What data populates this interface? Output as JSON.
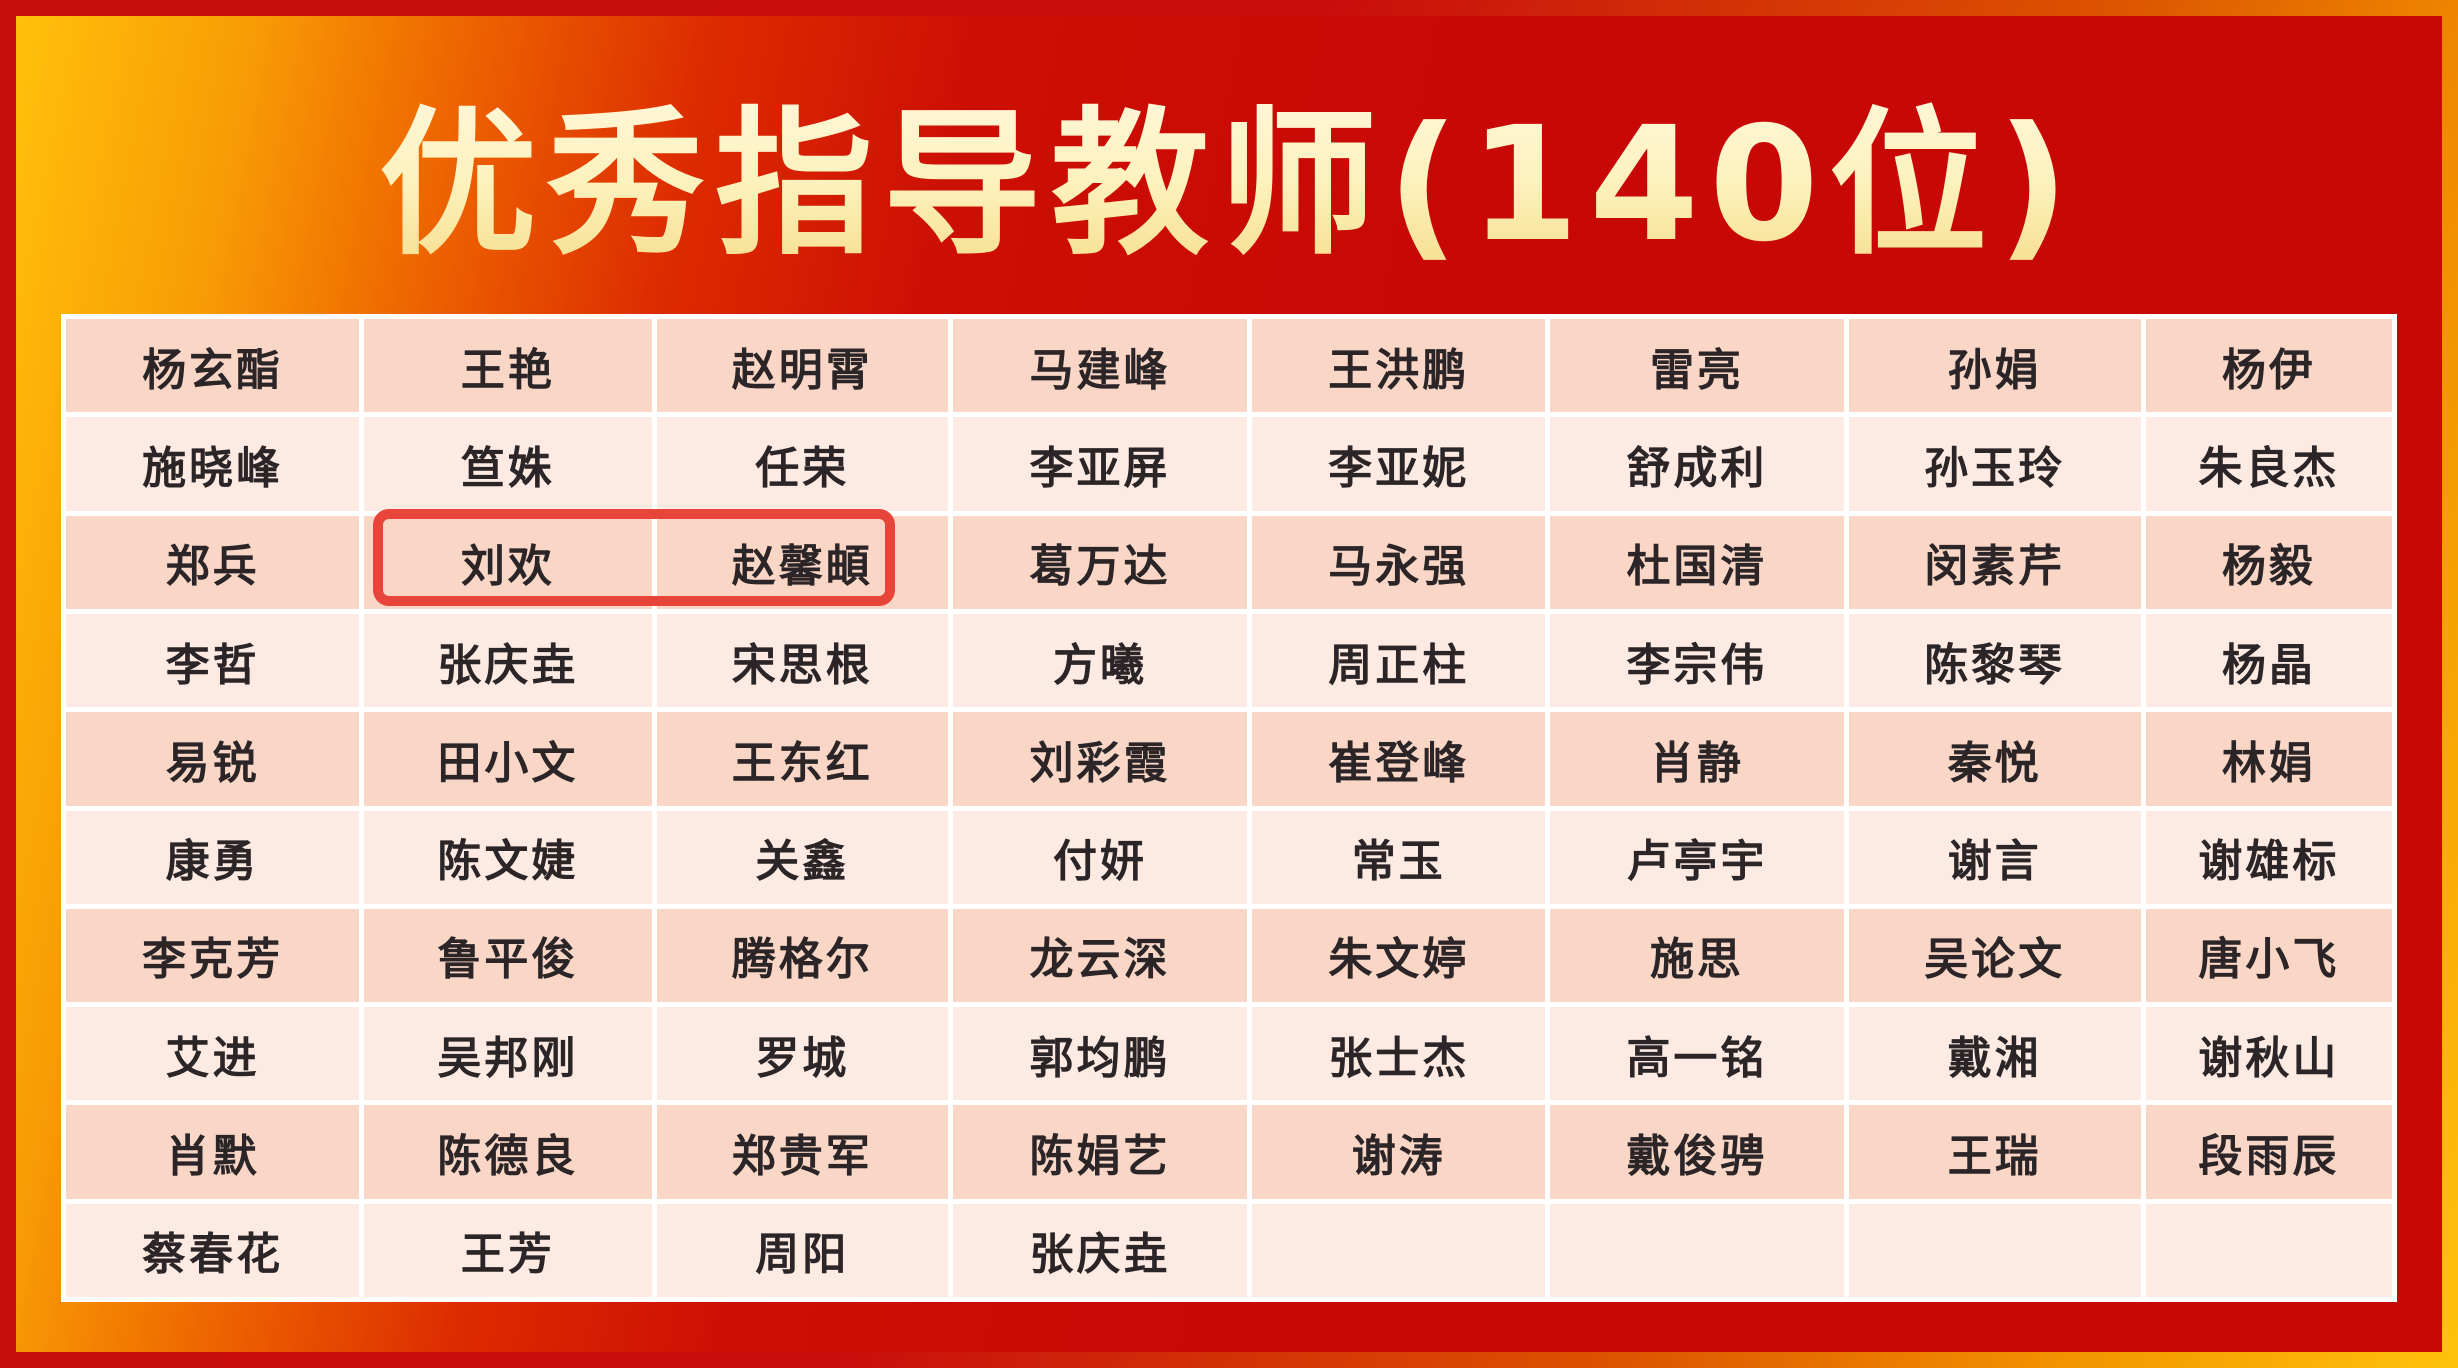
{
  "title": "优秀指导教师(140位)",
  "colors": {
    "frame_red": "#c40d0d",
    "frame_gold": "#ffc30b",
    "panel_gold": "#ffc10a",
    "panel_red": "#c80806",
    "grid_line": "#ffffff",
    "row_dark": "#f9d6c6",
    "row_light": "#fdebe3",
    "name_text": "#2b2527",
    "title_cream": "#fdf1bd",
    "highlight_red": "#e8453a"
  },
  "highlight": {
    "names": [
      "刘欢",
      "赵馨頔"
    ],
    "row_index": 2,
    "col_indices": [
      1,
      2
    ]
  },
  "table": {
    "rows": [
      [
        "杨玄酯",
        "王艳",
        "赵明霄",
        "马建峰",
        "王洪鹏",
        "雷亮",
        "孙娟",
        "杨伊"
      ],
      [
        "施晓峰",
        "笪姝",
        "任荣",
        "李亚屏",
        "李亚妮",
        "舒成利",
        "孙玉玲",
        "朱良杰"
      ],
      [
        "郑兵",
        "刘欢",
        "赵馨頔",
        "葛万达",
        "马永强",
        "杜国清",
        "闵素芹",
        "杨毅"
      ],
      [
        "李哲",
        "张庆垚",
        "宋思根",
        "方曦",
        "周正柱",
        "李宗伟",
        "陈黎琴",
        "杨晶"
      ],
      [
        "易锐",
        "田小文",
        "王东红",
        "刘彩霞",
        "崔登峰",
        "肖静",
        "秦悦",
        "林娟"
      ],
      [
        "康勇",
        "陈文婕",
        "关鑫",
        "付妍",
        "常玉",
        "卢亭宇",
        "谢言",
        "谢雄标"
      ],
      [
        "李克芳",
        "鲁平俊",
        "腾格尔",
        "龙云深",
        "朱文婷",
        "施思",
        "吴论文",
        "唐小飞"
      ],
      [
        "艾进",
        "吴邦刚",
        "罗城",
        "郭均鹏",
        "张士杰",
        "高一铭",
        "戴湘",
        "谢秋山"
      ],
      [
        "肖默",
        "陈德良",
        "郑贵军",
        "陈娟艺",
        "谢涛",
        "戴俊骋",
        "王瑞",
        "段雨辰"
      ],
      [
        "蔡春花",
        "王芳",
        "周阳",
        "张庆垚",
        "",
        "",
        "",
        ""
      ]
    ]
  }
}
